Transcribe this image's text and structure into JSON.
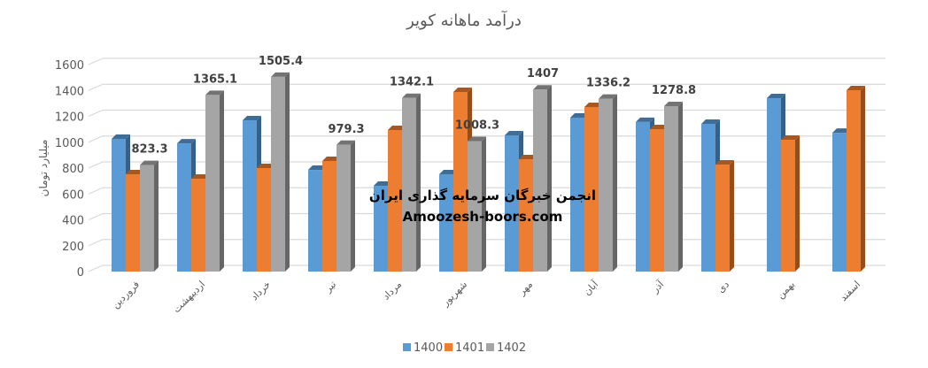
{
  "chart_data": {
    "type": "bar",
    "title": "درآمد ماهانه کویر",
    "ylabel": "میلیارد تومان",
    "xlabel": "",
    "ylim": [
      0,
      1600
    ],
    "yticks": [
      0,
      200,
      400,
      600,
      800,
      1000,
      1200,
      1400,
      1600
    ],
    "grid": true,
    "legend_position": "bottom",
    "style": "3d-clustered-column",
    "categories": [
      "فروردین",
      "اردیبهشت",
      "خرداد",
      "تیر",
      "مرداد",
      "شهریور",
      "مهر",
      "آبان",
      "آذر",
      "دی",
      "بهمن",
      "اسفند"
    ],
    "series": [
      {
        "name": "1400",
        "color": "#5B9BD5",
        "values": [
          1026,
          991,
          1169,
          786,
          663,
          752,
          1053,
          1190,
          1156,
          1142,
          1340,
          1073
        ]
      },
      {
        "name": "1401",
        "color": "#ED7D31",
        "values": [
          752,
          718,
          800,
          855,
          1094,
          1388,
          868,
          1272,
          1101,
          827,
          1019,
          1402
        ]
      },
      {
        "name": "1402",
        "color": "#A5A5A5",
        "values": [
          823.3,
          1365.1,
          1505.4,
          979.3,
          1342.1,
          1008.3,
          1407,
          1336.2,
          1278.8,
          null,
          null,
          null
        ],
        "data_labels": [
          "823.3",
          "1365.1",
          "1505.4",
          "979.3",
          "1342.1",
          "1008.3",
          "1407",
          "1336.2",
          "1278.8",
          null,
          null,
          null
        ]
      }
    ]
  },
  "watermark": {
    "line1": "انجمن خبرگان سرمایه گذاری ایران",
    "line2": "Amoozesh-boors.com"
  }
}
